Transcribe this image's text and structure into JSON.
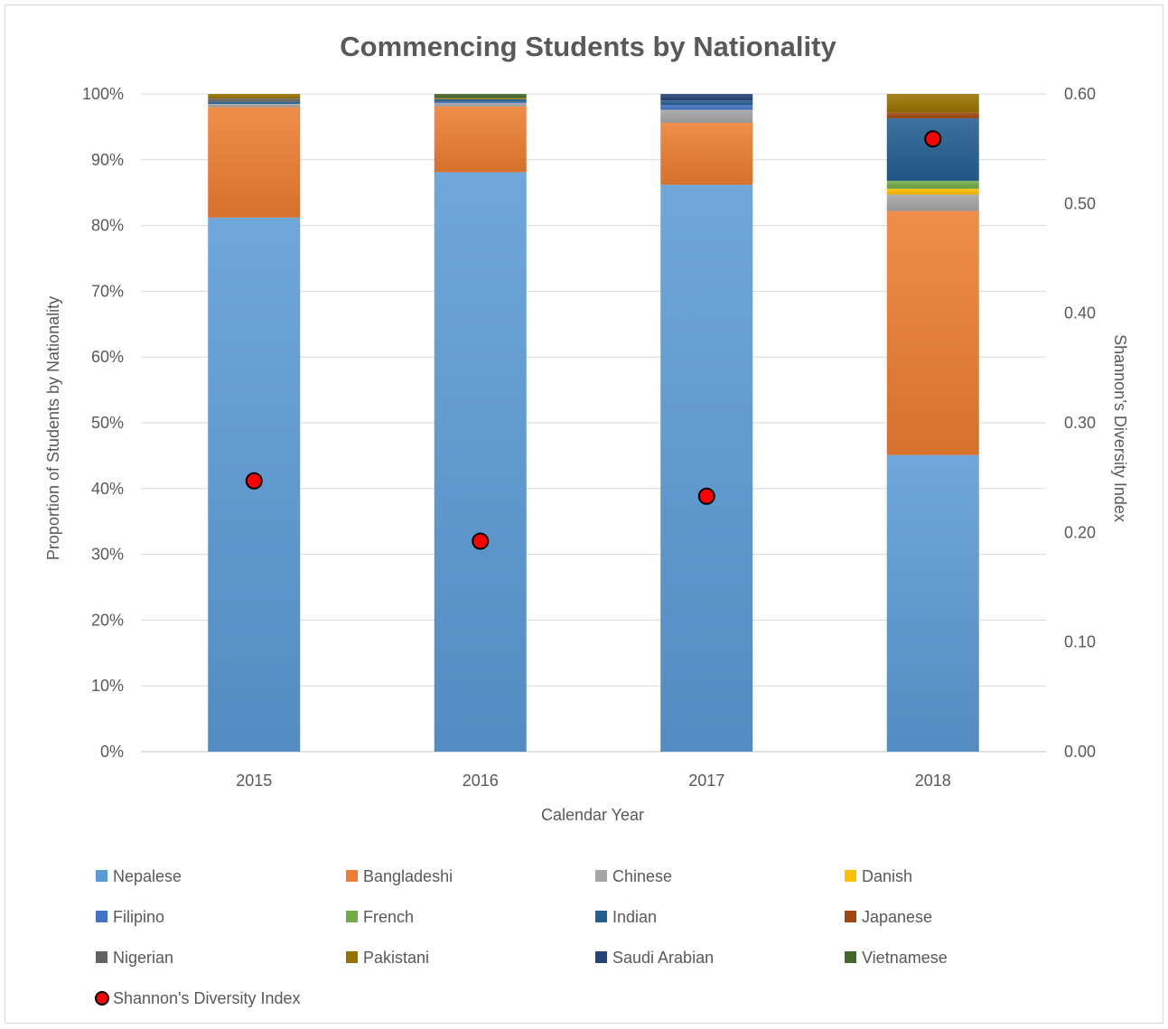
{
  "chart_data": {
    "type": "bar",
    "stacked": true,
    "title": "Commencing Students by Nationality",
    "xlabel": "Calendar Year",
    "ylabel": "Proportion of Students by Nationality",
    "y2label": "Shannon’s Diversity Index",
    "categories": [
      "2015",
      "2016",
      "2017",
      "2018"
    ],
    "ylim": [
      0,
      100
    ],
    "y_ticks": [
      "0%",
      "10%",
      "20%",
      "30%",
      "40%",
      "50%",
      "60%",
      "70%",
      "80%",
      "90%",
      "100%"
    ],
    "y2lim": [
      0,
      0.6
    ],
    "y2_ticks": [
      "0.00",
      "0.10",
      "0.20",
      "0.30",
      "0.40",
      "0.50",
      "0.60"
    ],
    "grid": true,
    "legend_position": "bottom",
    "series": [
      {
        "name": "Nepalese",
        "color": "#5b9bd5",
        "values": [
          81.2,
          88.1,
          86.2,
          45.1
        ]
      },
      {
        "name": "Bangladeshi",
        "color": "#ed7d31",
        "values": [
          16.8,
          10.0,
          9.4,
          37.1
        ]
      },
      {
        "name": "Chinese",
        "color": "#a5a5a5",
        "values": [
          0.5,
          0.5,
          2.0,
          2.5
        ]
      },
      {
        "name": "Danish",
        "color": "#ffc000",
        "values": [
          0,
          0,
          0,
          0.9
        ]
      },
      {
        "name": "Filipino",
        "color": "#4472c4",
        "values": [
          0,
          0.2,
          0.7,
          0
        ]
      },
      {
        "name": "French",
        "color": "#70ad47",
        "values": [
          0,
          0,
          0,
          1.2
        ]
      },
      {
        "name": "Indian",
        "color": "#255e91",
        "values": [
          0.3,
          0.4,
          0.7,
          9.5
        ]
      },
      {
        "name": "Japanese",
        "color": "#9e480e",
        "values": [
          0,
          0,
          0,
          0.9
        ]
      },
      {
        "name": "Nigerian",
        "color": "#636363",
        "values": [
          0.5,
          0,
          0,
          0
        ]
      },
      {
        "name": "Pakistani",
        "color": "#997300",
        "values": [
          0.7,
          0.2,
          0,
          2.8
        ]
      },
      {
        "name": "Saudi Arabian",
        "color": "#264478",
        "values": [
          0,
          0,
          1.0,
          0
        ]
      },
      {
        "name": "Vietnamese",
        "color": "#43682b",
        "values": [
          0,
          0.6,
          0,
          0
        ]
      }
    ],
    "diversity_series": {
      "name": "Shannon's Diversity Index",
      "marker_color": "#ff0000",
      "values": [
        0.247,
        0.192,
        0.233,
        0.559
      ]
    }
  }
}
